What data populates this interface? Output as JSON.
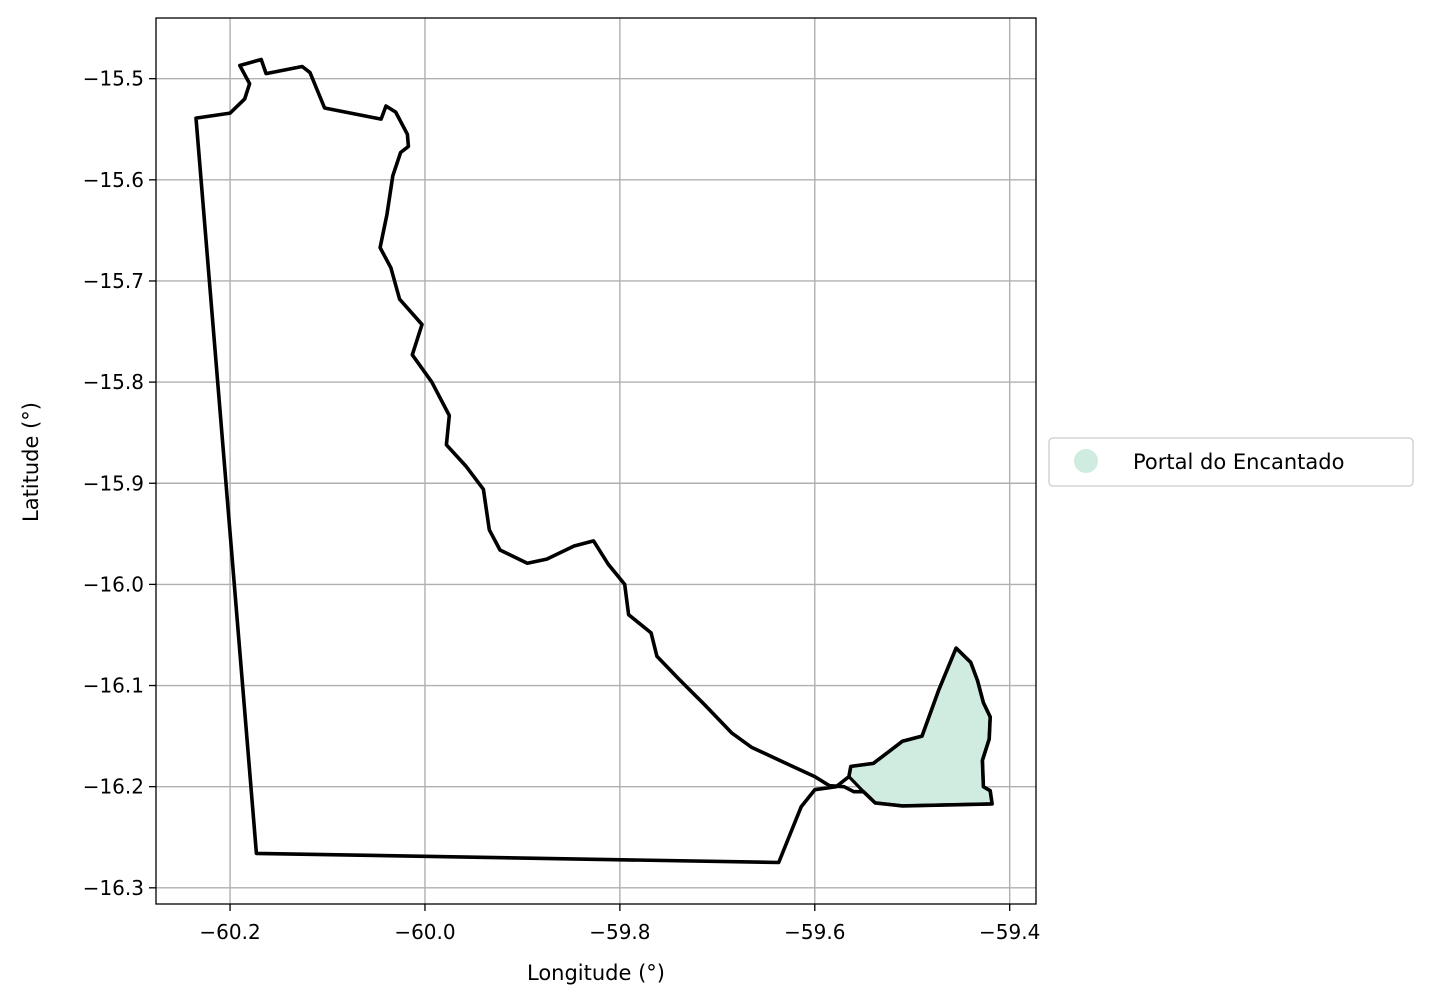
{
  "chart_data": {
    "type": "map",
    "xlabel": "Longitude (°)",
    "ylabel": "Latitude (°)",
    "xlim": [
      -60.276,
      -59.373
    ],
    "ylim": [
      -16.316,
      -15.44
    ],
    "xticks": [
      -60.2,
      -60.0,
      -59.8,
      -59.6,
      -59.4
    ],
    "xtick_labels": [
      "−60.2",
      "−60.0",
      "−59.8",
      "−59.6",
      "−59.4"
    ],
    "yticks": [
      -15.5,
      -15.6,
      -15.7,
      -15.8,
      -15.9,
      -16.0,
      -16.1,
      -16.2,
      -16.3
    ],
    "ytick_labels": [
      "−15.5",
      "−15.6",
      "−15.7",
      "−15.8",
      "−15.9",
      "−16.0",
      "−16.1",
      "−16.2",
      "−16.3"
    ],
    "grid": true,
    "legend_position": "center-right-outside",
    "colors": {
      "fill": "#d0ebdf",
      "outline": "#000000",
      "grid": "#b0b0b0"
    },
    "layers": [
      {
        "role": "outline",
        "coords": [
          [
            -60.235,
            -15.539
          ],
          [
            -60.2,
            -15.534
          ],
          [
            -60.185,
            -15.52
          ],
          [
            -60.18,
            -15.505
          ],
          [
            -60.19,
            -15.487
          ],
          [
            -60.168,
            -15.481
          ],
          [
            -60.163,
            -15.495
          ],
          [
            -60.126,
            -15.488
          ],
          [
            -60.118,
            -15.494
          ],
          [
            -60.103,
            -15.529
          ],
          [
            -60.045,
            -15.54
          ],
          [
            -60.04,
            -15.527
          ],
          [
            -60.03,
            -15.533
          ],
          [
            -60.018,
            -15.555
          ],
          [
            -60.017,
            -15.567
          ],
          [
            -60.025,
            -15.573
          ],
          [
            -60.033,
            -15.596
          ],
          [
            -60.039,
            -15.634
          ],
          [
            -60.046,
            -15.667
          ],
          [
            -60.035,
            -15.687
          ],
          [
            -60.026,
            -15.718
          ],
          [
            -60.003,
            -15.743
          ],
          [
            -60.013,
            -15.773
          ],
          [
            -59.993,
            -15.8
          ],
          [
            -59.975,
            -15.833
          ],
          [
            -59.978,
            -15.862
          ],
          [
            -59.958,
            -15.883
          ],
          [
            -59.94,
            -15.906
          ],
          [
            -59.934,
            -15.946
          ],
          [
            -59.923,
            -15.966
          ],
          [
            -59.895,
            -15.979
          ],
          [
            -59.875,
            -15.975
          ],
          [
            -59.847,
            -15.962
          ],
          [
            -59.827,
            -15.957
          ],
          [
            -59.812,
            -15.98
          ],
          [
            -59.795,
            -16.0
          ],
          [
            -59.791,
            -16.03
          ],
          [
            -59.768,
            -16.048
          ],
          [
            -59.762,
            -16.071
          ],
          [
            -59.74,
            -16.093
          ],
          [
            -59.713,
            -16.119
          ],
          [
            -59.685,
            -16.147
          ],
          [
            -59.665,
            -16.161
          ],
          [
            -59.625,
            -16.179
          ],
          [
            -59.6,
            -16.19
          ],
          [
            -59.585,
            -16.199
          ],
          [
            -59.57,
            -16.2
          ],
          [
            -59.56,
            -16.205
          ],
          [
            -59.55,
            -16.205
          ],
          [
            -59.538,
            -16.216
          ],
          [
            -59.51,
            -16.219
          ],
          [
            -59.418,
            -16.217
          ],
          [
            -59.42,
            -16.204
          ],
          [
            -59.427,
            -16.2
          ],
          [
            -59.428,
            -16.174
          ],
          [
            -59.421,
            -16.153
          ],
          [
            -59.42,
            -16.131
          ],
          [
            -59.427,
            -16.117
          ],
          [
            -59.433,
            -16.095
          ],
          [
            -59.44,
            -16.077
          ],
          [
            -59.455,
            -16.063
          ],
          [
            -59.473,
            -16.105
          ],
          [
            -59.49,
            -16.15
          ],
          [
            -59.51,
            -16.155
          ],
          [
            -59.54,
            -16.177
          ],
          [
            -59.563,
            -16.18
          ],
          [
            -59.565,
            -16.19
          ],
          [
            -59.578,
            -16.2
          ],
          [
            -59.6,
            -16.203
          ],
          [
            -59.614,
            -16.22
          ],
          [
            -59.637,
            -16.275
          ],
          [
            -60.173,
            -16.266
          ],
          [
            -60.235,
            -15.539
          ]
        ]
      },
      {
        "role": "area",
        "name": "Portal do Encantado",
        "coords": [
          [
            -59.563,
            -16.18
          ],
          [
            -59.54,
            -16.177
          ],
          [
            -59.51,
            -16.155
          ],
          [
            -59.49,
            -16.15
          ],
          [
            -59.473,
            -16.105
          ],
          [
            -59.455,
            -16.063
          ],
          [
            -59.44,
            -16.077
          ],
          [
            -59.433,
            -16.095
          ],
          [
            -59.427,
            -16.117
          ],
          [
            -59.42,
            -16.131
          ],
          [
            -59.421,
            -16.153
          ],
          [
            -59.428,
            -16.174
          ],
          [
            -59.427,
            -16.2
          ],
          [
            -59.42,
            -16.204
          ],
          [
            -59.418,
            -16.217
          ],
          [
            -59.51,
            -16.219
          ],
          [
            -59.538,
            -16.216
          ],
          [
            -59.55,
            -16.205
          ],
          [
            -59.56,
            -16.195
          ],
          [
            -59.565,
            -16.19
          ],
          [
            -59.563,
            -16.18
          ]
        ]
      }
    ],
    "legend": [
      {
        "label": "Portal do Encantado",
        "color": "#d0ebdf"
      }
    ]
  }
}
